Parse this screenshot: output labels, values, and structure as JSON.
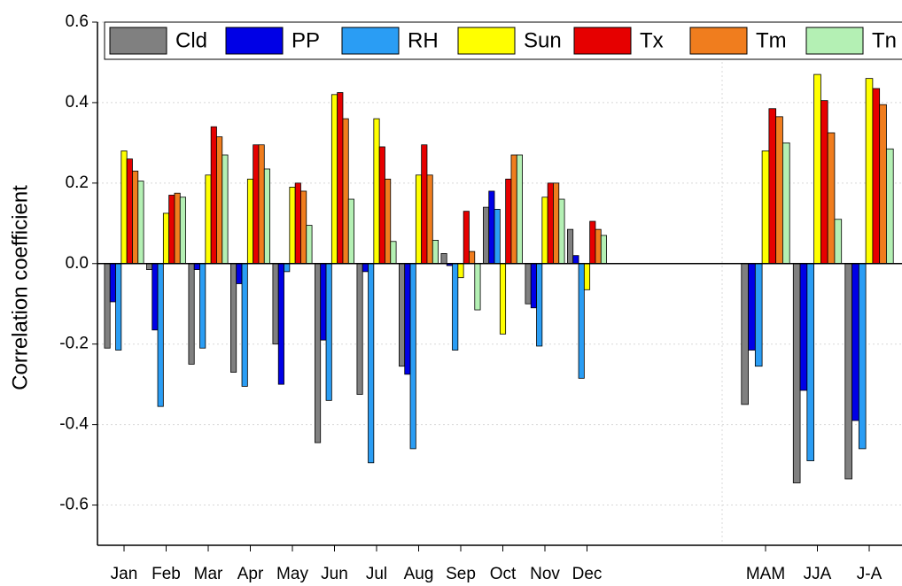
{
  "chart_data": {
    "type": "bar",
    "y_label": "Correlation coefficient",
    "categories": [
      "Jan",
      "Feb",
      "Mar",
      "Apr",
      "May",
      "Jun",
      "Jul",
      "Aug",
      "Sep",
      "Oct",
      "Nov",
      "Dec",
      "MAM",
      "JJA",
      "J-A"
    ],
    "series": [
      {
        "name": "Cld",
        "color": "#808080",
        "values": [
          -0.21,
          -0.015,
          -0.25,
          -0.27,
          -0.2,
          -0.445,
          -0.325,
          -0.255,
          0.025,
          0.14,
          -0.1,
          0.085,
          -0.35,
          -0.545,
          -0.535
        ]
      },
      {
        "name": "PP",
        "color": "#0000e6",
        "values": [
          -0.095,
          -0.165,
          -0.015,
          -0.05,
          -0.3,
          -0.19,
          -0.02,
          -0.275,
          -0.005,
          0.18,
          -0.11,
          0.02,
          -0.215,
          -0.315,
          -0.39
        ]
      },
      {
        "name": "RH",
        "color": "#2a9df4",
        "values": [
          -0.215,
          -0.355,
          -0.21,
          -0.305,
          -0.02,
          -0.34,
          -0.495,
          -0.46,
          -0.215,
          0.135,
          -0.205,
          -0.285,
          -0.255,
          -0.49,
          -0.46
        ]
      },
      {
        "name": "Sun",
        "color": "#ffff00",
        "values": [
          0.28,
          0.125,
          0.22,
          0.21,
          0.19,
          0.42,
          0.36,
          0.22,
          -0.035,
          -0.175,
          0.165,
          -0.065,
          0.28,
          0.47,
          0.46
        ]
      },
      {
        "name": "Tx",
        "color": "#e60000",
        "values": [
          0.26,
          0.17,
          0.34,
          0.295,
          0.2,
          0.425,
          0.29,
          0.295,
          0.13,
          0.21,
          0.2,
          0.105,
          0.385,
          0.405,
          0.435
        ]
      },
      {
        "name": "Tm",
        "color": "#f07d1e",
        "values": [
          0.23,
          0.175,
          0.315,
          0.295,
          0.18,
          0.36,
          0.21,
          0.22,
          0.03,
          0.27,
          0.2,
          0.085,
          0.365,
          0.325,
          0.395
        ]
      },
      {
        "name": "Tn",
        "color": "#b4f0b4",
        "values": [
          0.205,
          0.165,
          0.27,
          0.235,
          0.095,
          0.16,
          0.055,
          0.058,
          -0.115,
          0.27,
          0.16,
          0.07,
          0.3,
          0.11,
          0.285
        ]
      }
    ],
    "ylim": [
      -0.7,
      0.6
    ],
    "yticks": [
      -0.6,
      -0.4,
      -0.2,
      {
        "value": 0,
        "label": "0.0"
      },
      0.2,
      0.4,
      0.6
    ],
    "grid": true
  }
}
